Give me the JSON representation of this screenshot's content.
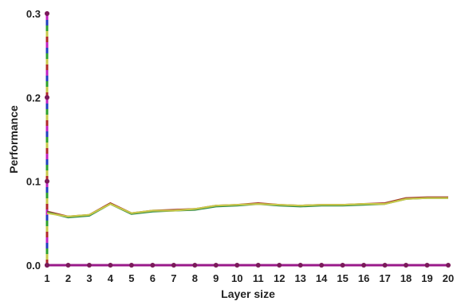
{
  "chart_data": {
    "type": "line",
    "title": "",
    "xlabel": "Layer size",
    "ylabel": "Performance",
    "x": [
      1,
      2,
      3,
      4,
      5,
      6,
      7,
      8,
      9,
      10,
      11,
      12,
      13,
      14,
      15,
      16,
      17,
      18,
      19,
      20
    ],
    "xlim": [
      1,
      20
    ],
    "ylim": [
      0,
      0.3
    ],
    "yticks": [
      0.0,
      0.1,
      0.2,
      0.3
    ],
    "ytick_labels": [
      "0.0",
      "0.1",
      "0.2",
      "0.3"
    ],
    "xtick_labels": [
      "1",
      "2",
      "3",
      "4",
      "5",
      "6",
      "7",
      "8",
      "9",
      "10",
      "11",
      "12",
      "13",
      "14",
      "15",
      "16",
      "17",
      "18",
      "19",
      "20"
    ],
    "grid": false,
    "legend": "none",
    "series": [
      {
        "color": "#a8362a",
        "values": [
          0.064,
          0.058,
          0.06,
          0.074,
          0.062,
          0.065,
          0.066,
          0.067,
          0.071,
          0.072,
          0.074,
          0.072,
          0.071,
          0.072,
          0.072,
          0.073,
          0.074,
          0.08,
          0.081,
          0.081
        ]
      },
      {
        "color": "#2c8a4a",
        "values": [
          0.063,
          0.057,
          0.059,
          0.073,
          0.061,
          0.064,
          0.065,
          0.066,
          0.07,
          0.071,
          0.073,
          0.071,
          0.07,
          0.071,
          0.071,
          0.072,
          0.073,
          0.079,
          0.08,
          0.08
        ]
      },
      {
        "color": "#c8c84a",
        "values": [
          0.062,
          0.058,
          0.06,
          0.073,
          0.062,
          0.065,
          0.065,
          0.067,
          0.071,
          0.072,
          0.073,
          0.072,
          0.071,
          0.072,
          0.072,
          0.073,
          0.073,
          0.079,
          0.08,
          0.08
        ]
      },
      {
        "color": "#9a1a8a",
        "values": [
          0,
          0,
          0,
          0,
          0,
          0,
          0,
          0,
          0,
          0,
          0,
          0,
          0,
          0,
          0,
          0,
          0,
          0,
          0,
          0
        ]
      }
    ],
    "yaxis_segment_colors": [
      "#b02828",
      "#c8c84a",
      "#2ca02c",
      "#1f3fbf",
      "#c020c0"
    ],
    "marker_color": "#7a1a5a"
  }
}
